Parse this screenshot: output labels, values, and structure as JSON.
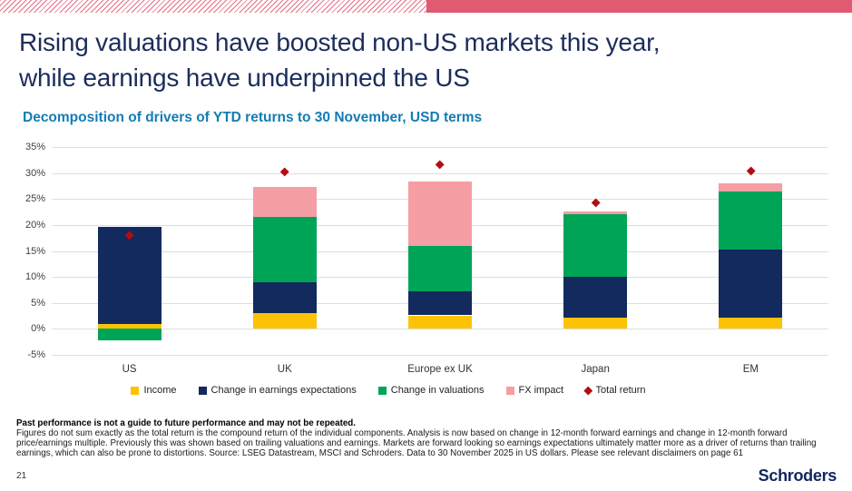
{
  "slide": {
    "title_line1": "Rising valuations have boosted non-US markets this year,",
    "title_line2": "while earnings have underpinned the US",
    "page_number": "21",
    "logo_text": "Schroders",
    "accent_color": "#e05a71"
  },
  "chart_data": {
    "type": "bar",
    "stacked": true,
    "title": "Decomposition of drivers of YTD returns to 30 November, USD terms",
    "categories": [
      "US",
      "UK",
      "Europe ex UK",
      "Japan",
      "EM"
    ],
    "series": [
      {
        "name": "Income",
        "color": "#fcc306",
        "values": [
          1.0,
          3.0,
          2.6,
          2.1,
          2.2
        ]
      },
      {
        "name": "Change in earnings expectations",
        "color": "#122a5e",
        "values": [
          18.7,
          6.0,
          4.6,
          7.9,
          13.1
        ]
      },
      {
        "name": "Change in valuations",
        "color": "#00a457",
        "values": [
          -2.2,
          12.5,
          8.8,
          12.1,
          11.2
        ]
      },
      {
        "name": "FX impact",
        "color": "#f59ea4",
        "values": [
          0,
          5.9,
          12.4,
          0.5,
          1.5
        ]
      }
    ],
    "marker_series": {
      "name": "Total return",
      "color": "#b30d12",
      "values": [
        17.9,
        30.2,
        31.5,
        24.3,
        30.4
      ]
    },
    "ylim": [
      -5,
      35
    ],
    "yticks": [
      35,
      30,
      25,
      20,
      15,
      10,
      5,
      0,
      -5
    ],
    "ytick_suffix": "%",
    "grid": "horizontal",
    "legend_position": "bottom"
  },
  "footnote": {
    "bold": "Past performance is not a guide to future performance and may not be repeated.",
    "body": "Figures do not sum exactly as the total return is the compound return of the individual components. Analysis is now based on change in 12-month forward earnings and change in 12-month forward price/earnings multiple. Previously this was shown based on trailing valuations and earnings. Markets are forward looking so earnings expectations ultimately matter more as a driver of returns than trailing earnings, which can also be prone to distortions. Source: LSEG Datastream, MSCI and Schroders. Data to 30 November 2025 in US dollars. Please see relevant disclaimers on page 61"
  }
}
